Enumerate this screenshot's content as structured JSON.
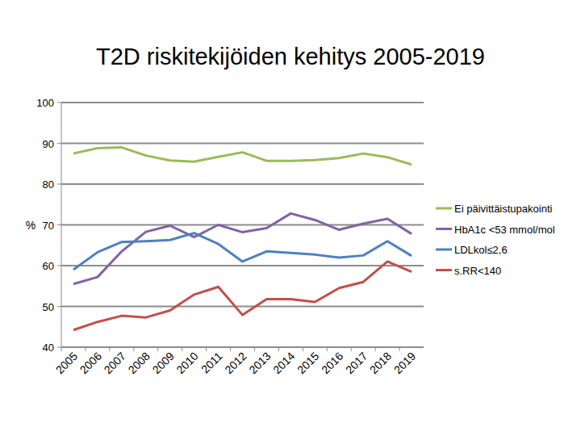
{
  "chart_data": {
    "type": "line",
    "title": "T2D riskitekijöiden kehitys 2005-2019",
    "y_label": "%",
    "categories": [
      "2005",
      "2006",
      "2007",
      "2008",
      "2009",
      "2010",
      "2011",
      "2012",
      "2013",
      "2014",
      "2015",
      "2016",
      "2017",
      "2018",
      "2019"
    ],
    "series": [
      {
        "name": "Ei päivittäistupakointi",
        "color": "#9bbb59",
        "values": [
          87.5,
          88.8,
          89,
          87,
          85.8,
          85.5,
          86.7,
          87.8,
          85.7,
          85.7,
          85.9,
          86.4,
          87.5,
          86.6,
          84.8
        ]
      },
      {
        "name": "HbA1c <53 mmol/mol",
        "color": "#8064a2",
        "values": [
          55.5,
          57.2,
          63.5,
          68.3,
          69.8,
          67,
          70,
          68.2,
          69.2,
          72.8,
          71.2,
          68.8,
          70.3,
          71.5,
          67.8
        ]
      },
      {
        "name": "LDLkol≤2,6",
        "color": "#4f81bd",
        "values": [
          59,
          63.3,
          65.8,
          66,
          66.3,
          68,
          65.3,
          61,
          63.5,
          63.1,
          62.7,
          62,
          62.5,
          66,
          62.4
        ]
      },
      {
        "name": "s.RR<140",
        "color": "#c0504d",
        "values": [
          44.2,
          46.2,
          47.7,
          47.3,
          49,
          52.9,
          54.8,
          47.9,
          51.8,
          51.8,
          51.1,
          54.5,
          56,
          61,
          58.5
        ]
      }
    ],
    "ylim": [
      40,
      100
    ],
    "yticks": [
      40,
      50,
      60,
      70,
      80,
      90,
      100
    ],
    "grid": true,
    "legend": "right"
  }
}
